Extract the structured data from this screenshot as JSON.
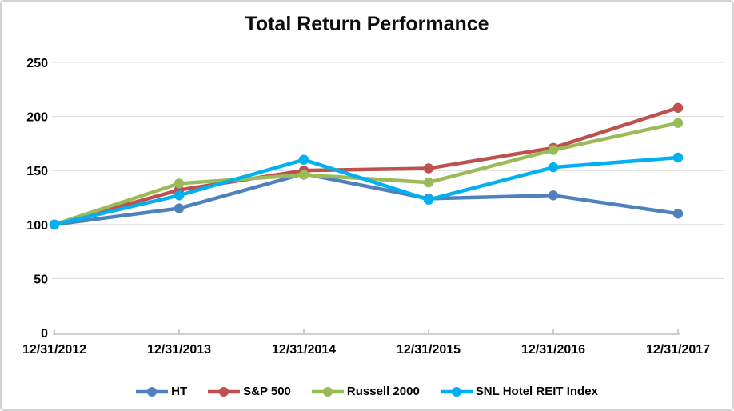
{
  "chart_data": {
    "type": "line",
    "title": "Total Return Performance",
    "categories": [
      "12/31/2012",
      "12/31/2013",
      "12/31/2014",
      "12/31/2015",
      "12/31/2016",
      "12/31/2017"
    ],
    "series": [
      {
        "name": "HT",
        "color": "#4F81BD",
        "values": [
          100,
          115,
          147,
          124,
          127,
          110
        ]
      },
      {
        "name": "S&P 500",
        "color": "#C0504D",
        "values": [
          100,
          132,
          150,
          152,
          171,
          208
        ]
      },
      {
        "name": "Russell 2000",
        "color": "#9BBB59",
        "values": [
          100,
          138,
          146,
          139,
          169,
          194
        ]
      },
      {
        "name": "SNL Hotel REIT Index",
        "color": "#00B0F0",
        "values": [
          100,
          127,
          160,
          123,
          153,
          162
        ]
      }
    ],
    "y_ticks": [
      0,
      50,
      100,
      150,
      200,
      250
    ],
    "ylim": [
      0,
      250
    ],
    "xlabel": "",
    "ylabel": "",
    "grid": true,
    "legend_position": "bottom",
    "grid_color": "#d9d9d9",
    "axis_color": "#bfbfbf",
    "text_color": "#000000"
  }
}
